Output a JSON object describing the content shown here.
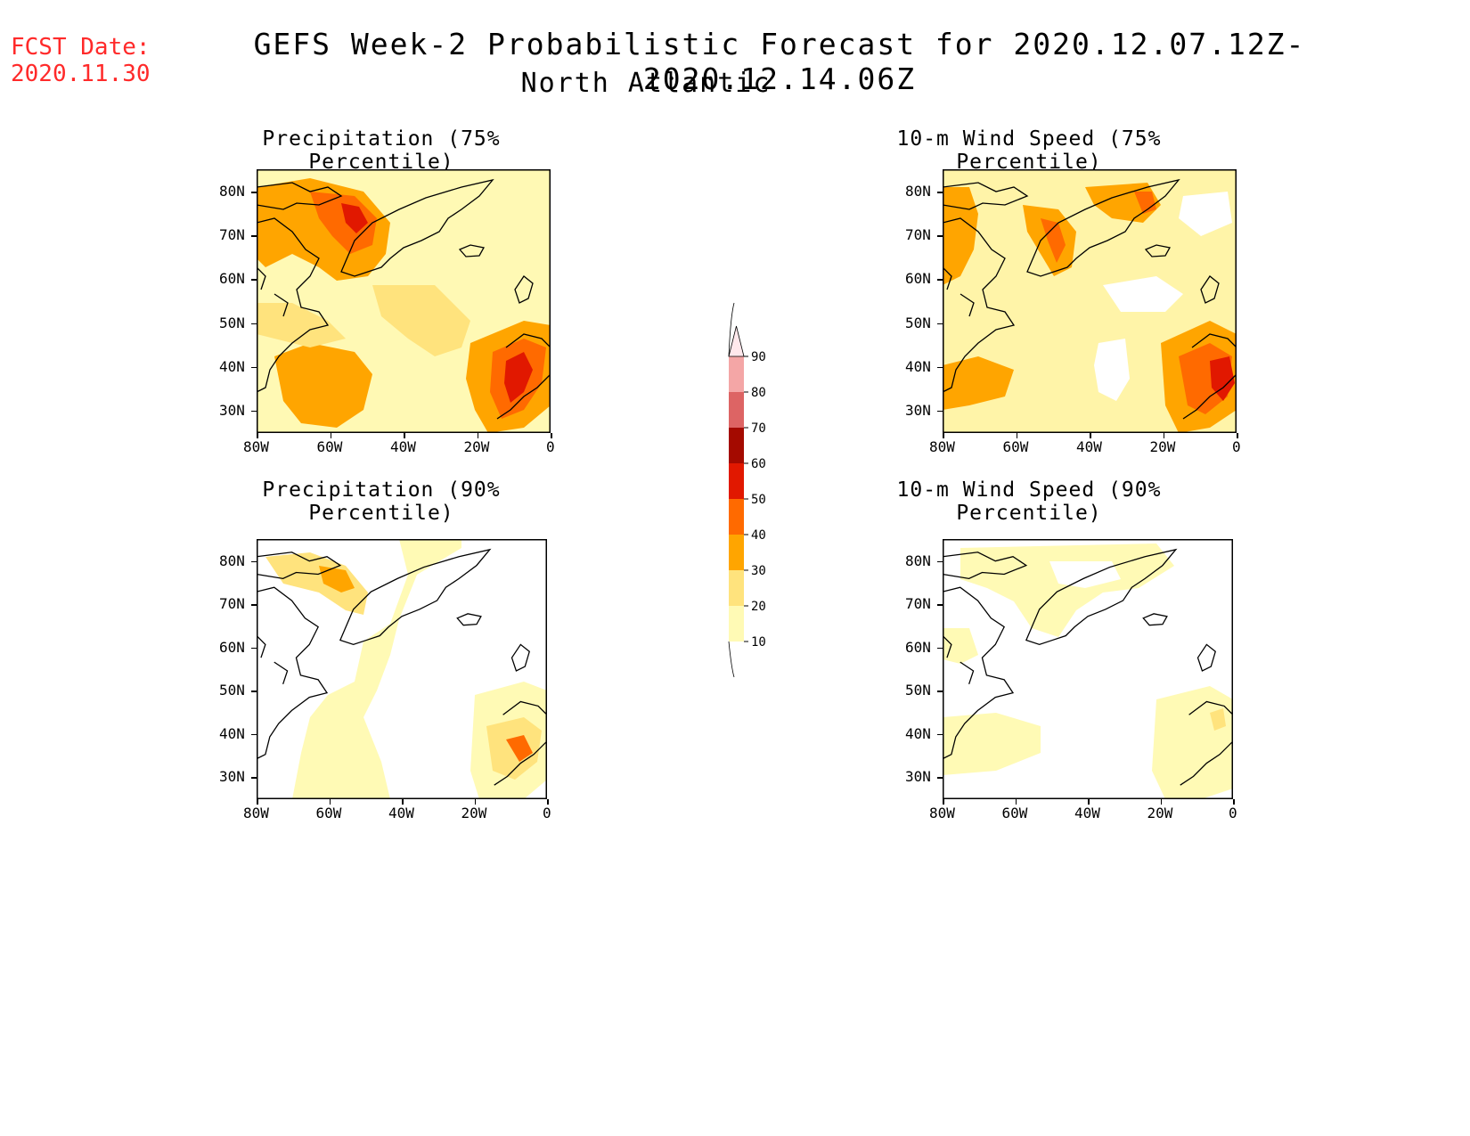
{
  "header": {
    "fcst_label": "FCST Date:",
    "fcst_date": "2020.11.30",
    "title": "GEFS Week-2 Probabilistic Forecast for 2020.12.07.12Z-2020.12.14.06Z",
    "region": "North Atlantic"
  },
  "panels": [
    {
      "id": "precip75",
      "title": "Precipitation (75% Percentile)",
      "base": "#fff9b4"
    },
    {
      "id": "wind75",
      "title": "10-m Wind Speed (75% Percentile)",
      "base": "#fff4a8"
    },
    {
      "id": "precip90",
      "title": "Precipitation (90% Percentile)",
      "base": "#ffffff"
    },
    {
      "id": "wind90",
      "title": "10-m Wind Speed (90% Percentile)",
      "base": "#ffffff"
    }
  ],
  "axes": {
    "lat_labels": [
      "80N",
      "70N",
      "60N",
      "50N",
      "40N",
      "30N"
    ],
    "lon_labels": [
      "80W",
      "60W",
      "40W",
      "20W",
      "0"
    ]
  },
  "colorbar": {
    "levels": [
      "10",
      "20",
      "30",
      "40",
      "50",
      "60",
      "70",
      "80",
      "90"
    ],
    "colors": [
      "#fffab5",
      "#ffe37d",
      "#ffa500",
      "#ff6a00",
      "#e11800",
      "#a40a00",
      "#dd6464",
      "#f4a6a6",
      "#ffe8ec"
    ]
  }
}
